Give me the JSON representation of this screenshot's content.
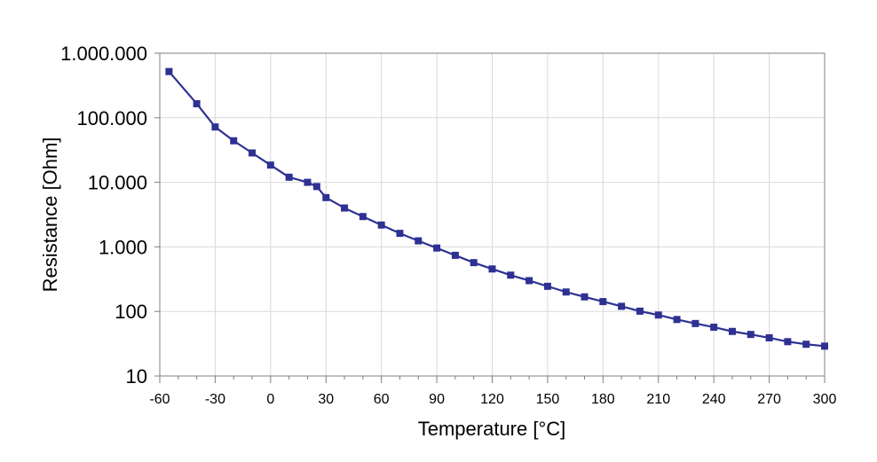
{
  "chart_data": {
    "type": "line",
    "title": "",
    "xlabel": "Temperature [°C]",
    "ylabel": "Resistance [Ohm]",
    "x_scale": "linear",
    "y_scale": "log",
    "xlim": [
      -60,
      300
    ],
    "ylim": [
      10,
      1000000
    ],
    "x_ticks": [
      -60,
      -30,
      0,
      30,
      60,
      90,
      120,
      150,
      180,
      210,
      240,
      270,
      300
    ],
    "x_tick_labels": [
      "-60",
      "-30",
      "0",
      "30",
      "60",
      "90",
      "120",
      "150",
      "180",
      "210",
      "240",
      "270",
      "300"
    ],
    "y_ticks": [
      10,
      100,
      1000,
      10000,
      100000,
      1000000
    ],
    "y_tick_labels": [
      "10",
      "100",
      "1.000",
      "10.000",
      "100.000",
      "1.000.000"
    ],
    "grid": true,
    "legend": "none",
    "line_color": "#2e3192",
    "marker": "square",
    "series": [
      {
        "x": [
          -55,
          -40,
          -30,
          -20,
          -10,
          0,
          10,
          20,
          25,
          30,
          40,
          50,
          60,
          70,
          80,
          90,
          100,
          110,
          120,
          130,
          140,
          150,
          160,
          170,
          180,
          190,
          200,
          210,
          220,
          230,
          240,
          250,
          260,
          270,
          280,
          290,
          300
        ],
        "y": [
          520000,
          165000,
          72000,
          44000,
          28500,
          18500,
          12000,
          10000,
          8600,
          5800,
          4000,
          2950,
          2180,
          1620,
          1240,
          960,
          740,
          570,
          455,
          365,
          300,
          245,
          200,
          168,
          142,
          120,
          101,
          88,
          75,
          65,
          57,
          49,
          44,
          39,
          34,
          31,
          29
        ]
      }
    ]
  }
}
